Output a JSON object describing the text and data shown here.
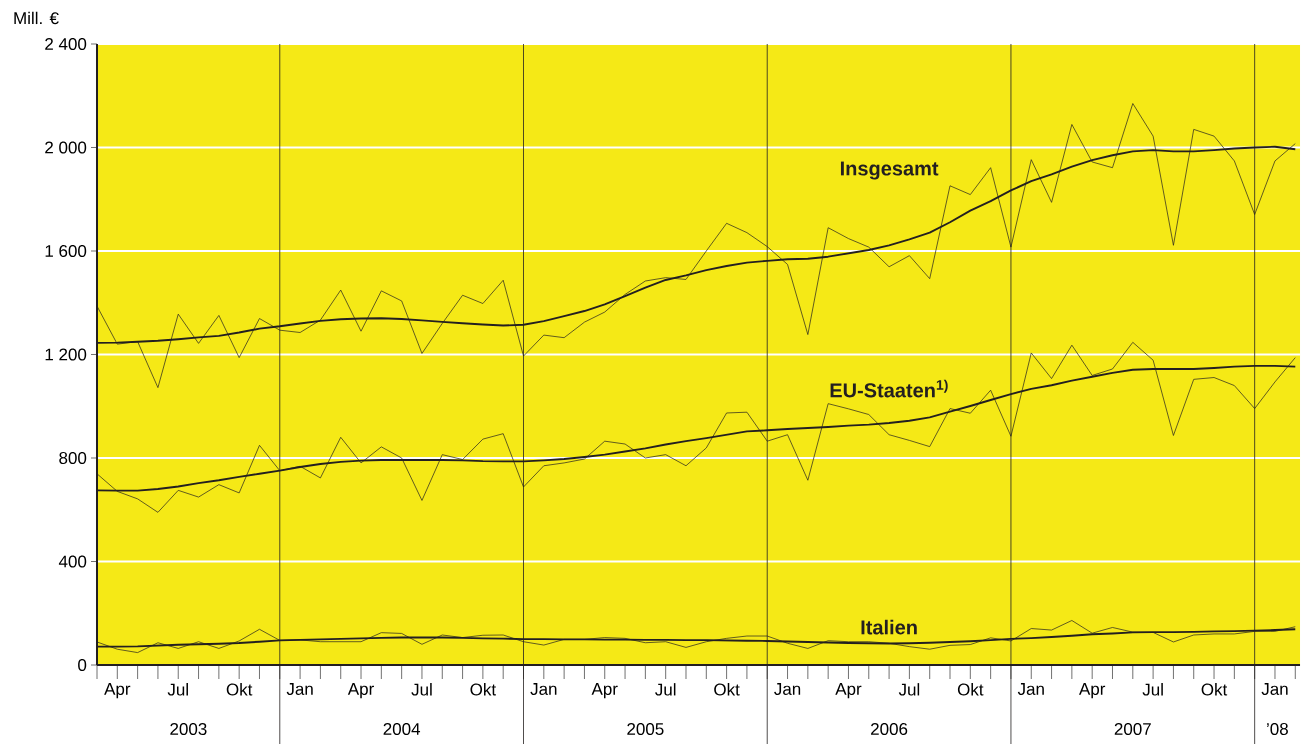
{
  "chart_data": {
    "type": "line",
    "ylabel": "Mill. €",
    "x": [
      "2003-03",
      "2003-04",
      "2003-05",
      "2003-06",
      "2003-07",
      "2003-08",
      "2003-09",
      "2003-10",
      "2003-11",
      "2003-12",
      "2004-01",
      "2004-02",
      "2004-03",
      "2004-04",
      "2004-05",
      "2004-06",
      "2004-07",
      "2004-08",
      "2004-09",
      "2004-10",
      "2004-11",
      "2004-12",
      "2005-01",
      "2005-02",
      "2005-03",
      "2005-04",
      "2005-05",
      "2005-06",
      "2005-07",
      "2005-08",
      "2005-09",
      "2005-10",
      "2005-11",
      "2005-12",
      "2006-01",
      "2006-02",
      "2006-03",
      "2006-04",
      "2006-05",
      "2006-06",
      "2006-07",
      "2006-08",
      "2006-09",
      "2006-10",
      "2006-11",
      "2006-12",
      "2007-01",
      "2007-02",
      "2007-03",
      "2007-04",
      "2007-05",
      "2007-06",
      "2007-07",
      "2007-08",
      "2007-09",
      "2007-10",
      "2007-11",
      "2007-12",
      "2008-01",
      "2008-02"
    ],
    "series": [
      {
        "color": "#231f20",
        "values": [
          1387,
          1240,
          1250,
          1072,
          1356,
          1243,
          1351,
          1188,
          1339,
          1294,
          1285,
          1333,
          1449,
          1290,
          1446,
          1407,
          1204,
          1320,
          1429,
          1397,
          1487,
          1194,
          1275,
          1265,
          1325,
          1364,
          1432,
          1484,
          1497,
          1490,
          1600,
          1707,
          1671,
          1617,
          1548,
          1277,
          1690,
          1648,
          1615,
          1539,
          1582,
          1493,
          1852,
          1818,
          1922,
          1615,
          1953,
          1788,
          2089,
          1944,
          1922,
          2170,
          2044,
          1622,
          2070,
          2044,
          1948,
          1741,
          1948,
          2015
        ]
      },
      {
        "name": "Insgesamt",
        "color": "#231f20",
        "values": [
          1245,
          1246,
          1249,
          1253,
          1259,
          1266,
          1272,
          1285,
          1300,
          1309,
          1320,
          1330,
          1336,
          1339,
          1340,
          1337,
          1332,
          1326,
          1321,
          1316,
          1312,
          1315,
          1329,
          1348,
          1368,
          1394,
          1426,
          1458,
          1488,
          1506,
          1526,
          1542,
          1555,
          1562,
          1568,
          1570,
          1578,
          1591,
          1604,
          1622,
          1645,
          1671,
          1711,
          1756,
          1793,
          1834,
          1870,
          1896,
          1926,
          1951,
          1970,
          1985,
          1990,
          1985,
          1985,
          1990,
          1996,
          2000,
          2003,
          1993
        ]
      },
      {
        "color": "#231f20",
        "values": [
          739,
          671,
          642,
          590,
          675,
          649,
          697,
          665,
          849,
          751,
          768,
          723,
          880,
          781,
          843,
          800,
          636,
          813,
          794,
          873,
          894,
          688,
          770,
          781,
          796,
          865,
          854,
          800,
          813,
          770,
          839,
          974,
          977,
          865,
          890,
          714,
          1010,
          990,
          968,
          890,
          868,
          844,
          991,
          973,
          1062,
          884,
          1206,
          1107,
          1236,
          1119,
          1144,
          1247,
          1178,
          887,
          1104,
          1111,
          1080,
          991,
          1094,
          1188
        ]
      },
      {
        "name": "EU-Staaten$^{1)}$",
        "color": "#231f20",
        "values": [
          675,
          674,
          674,
          680,
          690,
          703,
          714,
          727,
          739,
          751,
          765,
          777,
          785,
          790,
          792,
          792,
          792,
          792,
          791,
          788,
          787,
          787,
          791,
          796,
          804,
          813,
          825,
          837,
          852,
          865,
          877,
          890,
          903,
          907,
          912,
          916,
          920,
          925,
          929,
          935,
          944,
          957,
          979,
          1001,
          1024,
          1047,
          1067,
          1081,
          1099,
          1114,
          1129,
          1141,
          1144,
          1144,
          1144,
          1148,
          1153,
          1156,
          1156,
          1153
        ]
      },
      {
        "color": "#231f20",
        "values": [
          89,
          61,
          48,
          86,
          64,
          90,
          64,
          93,
          138,
          95,
          97,
          90,
          90,
          90,
          125,
          122,
          80,
          116,
          106,
          115,
          116,
          90,
          77,
          99,
          99,
          106,
          103,
          86,
          90,
          68,
          90,
          103,
          112,
          112,
          84,
          64,
          94,
          90,
          90,
          84,
          71,
          61,
          76,
          79,
          105,
          93,
          141,
          135,
          172,
          123,
          145,
          127,
          126,
          89,
          116,
          120,
          120,
          130,
          130,
          148
        ]
      },
      {
        "name": "Italien",
        "color": "#231f20",
        "values": [
          71,
          71,
          72,
          75,
          78,
          80,
          82,
          85,
          90,
          95,
          97,
          99,
          101,
          103,
          105,
          106,
          106,
          106,
          105,
          103,
          102,
          100,
          100,
          99,
          99,
          98,
          98,
          97,
          97,
          96,
          96,
          95,
          94,
          93,
          91,
          89,
          87,
          85,
          84,
          83,
          84,
          86,
          89,
          92,
          96,
          101,
          104,
          108,
          113,
          119,
          122,
          126,
          127,
          127,
          128,
          130,
          131,
          133,
          135,
          138
        ]
      }
    ],
    "xlim": [
      "2003-03",
      "2008-02-08"
    ],
    "xticks": [
      {
        "value": "2003-03",
        "label": null
      },
      {
        "value": "2003-04",
        "label": "Apr"
      },
      {
        "value": "2003-05",
        "label": null
      },
      {
        "value": "2003-06",
        "label": null
      },
      {
        "value": "2003-07",
        "label": "Jul"
      },
      {
        "value": "2003-08",
        "label": null
      },
      {
        "value": "2003-09",
        "label": null
      },
      {
        "value": "2003-10",
        "label": "Okt"
      },
      {
        "value": "2003-11",
        "label": null
      },
      {
        "value": "2003-12",
        "label": null
      },
      {
        "value": "2004-01",
        "label": "Jan"
      },
      {
        "value": "2004-02",
        "label": null
      },
      {
        "value": "2004-03",
        "label": null
      },
      {
        "value": "2004-04",
        "label": "Apr"
      },
      {
        "value": "2004-05",
        "label": null
      },
      {
        "value": "2004-06",
        "label": null
      },
      {
        "value": "2004-07",
        "label": "Jul"
      },
      {
        "value": "2004-08",
        "label": null
      },
      {
        "value": "2004-09",
        "label": null
      },
      {
        "value": "2004-10",
        "label": "Okt"
      },
      {
        "value": "2004-11",
        "label": null
      },
      {
        "value": "2004-12",
        "label": null
      },
      {
        "value": "2005-01",
        "label": "Jan"
      },
      {
        "value": "2005-02",
        "label": null
      },
      {
        "value": "2005-03",
        "label": null
      },
      {
        "value": "2005-04",
        "label": "Apr"
      },
      {
        "value": "2005-05",
        "label": null
      },
      {
        "value": "2005-06",
        "label": null
      },
      {
        "value": "2005-07",
        "label": "Jul"
      },
      {
        "value": "2005-08",
        "label": null
      },
      {
        "value": "2005-09",
        "label": null
      },
      {
        "value": "2005-10",
        "label": "Okt"
      },
      {
        "value": "2005-11",
        "label": null
      },
      {
        "value": "2005-12",
        "label": null
      },
      {
        "value": "2006-01",
        "label": "Jan"
      },
      {
        "value": "2006-02",
        "label": null
      },
      {
        "value": "2006-03",
        "label": null
      },
      {
        "value": "2006-04",
        "label": "Apr"
      },
      {
        "value": "2006-05",
        "label": null
      },
      {
        "value": "2006-06",
        "label": null
      },
      {
        "value": "2006-07",
        "label": "Jul"
      },
      {
        "value": "2006-08",
        "label": null
      },
      {
        "value": "2006-09",
        "label": null
      },
      {
        "value": "2006-10",
        "label": "Okt"
      },
      {
        "value": "2006-11",
        "label": null
      },
      {
        "value": "2006-12",
        "label": null
      },
      {
        "value": "2007-01",
        "label": "Jan"
      },
      {
        "value": "2007-02",
        "label": null
      },
      {
        "value": "2007-03",
        "label": null
      },
      {
        "value": "2007-04",
        "label": "Apr"
      },
      {
        "value": "2007-05",
        "label": null
      },
      {
        "value": "2007-06",
        "label": null
      },
      {
        "value": "2007-07",
        "label": "Jul"
      },
      {
        "value": "2007-08",
        "label": null
      },
      {
        "value": "2007-09",
        "label": null
      },
      {
        "value": "2007-10",
        "label": "Okt"
      },
      {
        "value": "2007-11",
        "label": null
      },
      {
        "value": "2007-12",
        "label": null
      },
      {
        "value": "2008-01",
        "label": "Jan"
      },
      {
        "value": "2008-02",
        "label": null
      }
    ],
    "ylim": [
      0,
      2400
    ],
    "yticks": [
      0,
      400,
      800,
      {
        "value": 1200,
        "label": "1 200"
      },
      {
        "value": 1600,
        "label": "1 600"
      },
      {
        "value": 2000,
        "label": "2 000"
      },
      {
        "value": 2400,
        "label": "2 400"
      }
    ],
    "grid": "y",
    "ref_lines": [
      {
        "axis": "x",
        "value": "2003-12",
        "color": "#231f20"
      },
      {
        "axis": "x",
        "value": "2004-12",
        "color": "#231f20"
      },
      {
        "axis": "x",
        "value": "2005-12",
        "color": "#231f20"
      },
      {
        "axis": "x",
        "value": "2006-12",
        "color": "#231f20"
      },
      {
        "axis": "x",
        "value": "2007-12",
        "color": "#231f20"
      }
    ],
    "annotations": [
      "2003",
      "2004",
      "2005",
      "2006",
      "2007",
      "’08"
    ]
  }
}
